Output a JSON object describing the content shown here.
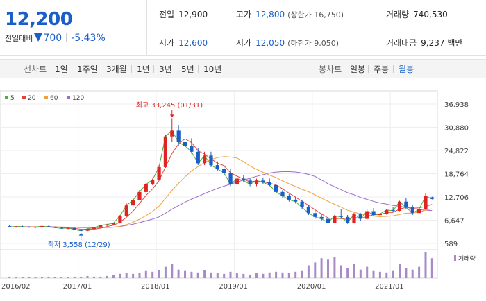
{
  "stock": {
    "price": "12,200",
    "change_label": "전일대비",
    "change_amount": "700",
    "change_rate": "-5.43%"
  },
  "stats": {
    "prev_close": {
      "label": "전일",
      "value": "12,900"
    },
    "high": {
      "label": "고가",
      "value": "12,800",
      "sub": "(상한가 16,750)"
    },
    "volume": {
      "label": "거래량",
      "value": "740,530"
    },
    "open": {
      "label": "시가",
      "value": "12,600"
    },
    "low": {
      "label": "저가",
      "value": "12,050",
      "sub": "(하한가 9,050)"
    },
    "trade_value": {
      "label": "거래대금",
      "value": "9,237 백만"
    }
  },
  "period_tabs": {
    "label": "선차트",
    "items": [
      "1일",
      "1주일",
      "3개월",
      "1년",
      "3년",
      "5년",
      "10년"
    ]
  },
  "candle_tabs": {
    "label": "봉차트",
    "items": [
      "일봉",
      "주봉",
      "월봉"
    ],
    "active": "월봉"
  },
  "colors": {
    "up": "#e02424",
    "down": "#1a5fc8",
    "ma5": "#4cae3c",
    "ma20": "#e0463c",
    "ma60": "#f0a040",
    "ma120": "#9a6cc8"
  },
  "chart_data": {
    "type": "candlestick",
    "legend": [
      {
        "name": "5",
        "color": "#4cae3c"
      },
      {
        "name": "20",
        "color": "#e0463c"
      },
      {
        "name": "60",
        "color": "#f0a040"
      },
      {
        "name": "120",
        "color": "#9a6cc8"
      }
    ],
    "y_ticks": [
      "36,938",
      "30,880",
      "24,822",
      "18,764",
      "12,706",
      "6,647",
      "589"
    ],
    "y_range": [
      589,
      36938
    ],
    "x_ticks": [
      "2016/02",
      "2017/01",
      "2018/01",
      "2019/01",
      "2020/01",
      "2021/01"
    ],
    "volume_label": "거래량",
    "annotations": {
      "high": "최고 33,245 (01/31)",
      "low": "최저 3,558 (12/29)"
    },
    "candles": [
      [
        5100,
        5300,
        4800,
        4900
      ],
      [
        4900,
        5100,
        4700,
        5000
      ],
      [
        5000,
        5200,
        4800,
        4950
      ],
      [
        4950,
        5050,
        4700,
        4800
      ],
      [
        4800,
        5000,
        4600,
        4900
      ],
      [
        4900,
        5200,
        4800,
        5100
      ],
      [
        5100,
        5200,
        4800,
        4850
      ],
      [
        4850,
        5000,
        4600,
        4700
      ],
      [
        4700,
        4800,
        4400,
        4500
      ],
      [
        4500,
        4700,
        4300,
        4600
      ],
      [
        4600,
        4700,
        4100,
        4200
      ],
      [
        4200,
        4300,
        3558,
        3900
      ],
      [
        3900,
        4500,
        3800,
        4400
      ],
      [
        4400,
        4800,
        4300,
        4700
      ],
      [
        4700,
        5400,
        4600,
        5300
      ],
      [
        5300,
        5700,
        5100,
        5500
      ],
      [
        5500,
        6000,
        5300,
        5900
      ],
      [
        5900,
        8000,
        5800,
        7800
      ],
      [
        7800,
        11000,
        7600,
        10500
      ],
      [
        10500,
        12300,
        10200,
        11900
      ],
      [
        11900,
        14500,
        11800,
        14000
      ],
      [
        14000,
        16400,
        13500,
        16000
      ],
      [
        16000,
        17500,
        15800,
        17200
      ],
      [
        17200,
        21000,
        17100,
        20500
      ],
      [
        20500,
        29000,
        20300,
        28500
      ],
      [
        28500,
        33245,
        27000,
        30000
      ],
      [
        30000,
        31500,
        26000,
        27000
      ],
      [
        27000,
        28500,
        25000,
        26000
      ],
      [
        26000,
        28000,
        24000,
        24500
      ],
      [
        24500,
        25500,
        21000,
        21500
      ],
      [
        21500,
        24500,
        21000,
        23500
      ],
      [
        23500,
        24500,
        20500,
        21000
      ],
      [
        21000,
        22000,
        19500,
        20000
      ],
      [
        20000,
        21000,
        18500,
        19000
      ],
      [
        19000,
        20000,
        15500,
        16000
      ],
      [
        16000,
        18000,
        15500,
        17500
      ],
      [
        17500,
        18500,
        16500,
        17000
      ],
      [
        17000,
        17500,
        15500,
        16000
      ],
      [
        16000,
        17500,
        15500,
        17000
      ],
      [
        17000,
        17800,
        16000,
        16500
      ],
      [
        16500,
        17500,
        15500,
        15800
      ],
      [
        15800,
        16500,
        13500,
        14000
      ],
      [
        14000,
        14500,
        12500,
        13000
      ],
      [
        13000,
        13500,
        11500,
        12000
      ],
      [
        12000,
        12800,
        11000,
        11500
      ],
      [
        11500,
        12000,
        9500,
        10000
      ],
      [
        10000,
        10500,
        8000,
        8500
      ],
      [
        8500,
        9200,
        7000,
        7500
      ],
      [
        7500,
        8200,
        6500,
        7000
      ],
      [
        7000,
        7300,
        5800,
        6000
      ],
      [
        6000,
        8000,
        5900,
        7800
      ],
      [
        7800,
        9500,
        7000,
        7500
      ],
      [
        7500,
        8000,
        5700,
        6000
      ],
      [
        6000,
        8600,
        5800,
        8200
      ],
      [
        8200,
        8500,
        6500,
        7000
      ],
      [
        7000,
        9500,
        6800,
        9000
      ],
      [
        9000,
        9800,
        7800,
        8000
      ],
      [
        8000,
        8600,
        7500,
        8300
      ],
      [
        8300,
        9500,
        8100,
        9300
      ],
      [
        9300,
        10000,
        8800,
        9100
      ],
      [
        9100,
        11700,
        9000,
        11500
      ],
      [
        11500,
        12500,
        9500,
        10000
      ],
      [
        10000,
        10500,
        8000,
        8500
      ],
      [
        8500,
        9800,
        8200,
        9500
      ],
      [
        9500,
        13800,
        9300,
        12900
      ],
      [
        12600,
        12800,
        12050,
        12200
      ]
    ],
    "volumes": [
      2,
      1,
      1,
      2,
      1,
      1,
      2,
      1,
      1,
      1,
      2,
      2,
      3,
      2,
      2,
      3,
      4,
      6,
      7,
      6,
      7,
      10,
      9,
      11,
      16,
      20,
      12,
      10,
      9,
      8,
      11,
      8,
      7,
      6,
      9,
      7,
      6,
      5,
      7,
      6,
      8,
      9,
      8,
      7,
      9,
      10,
      18,
      22,
      28,
      26,
      30,
      18,
      14,
      20,
      12,
      16,
      10,
      9,
      8,
      10,
      20,
      14,
      12,
      16,
      36,
      28
    ]
  }
}
